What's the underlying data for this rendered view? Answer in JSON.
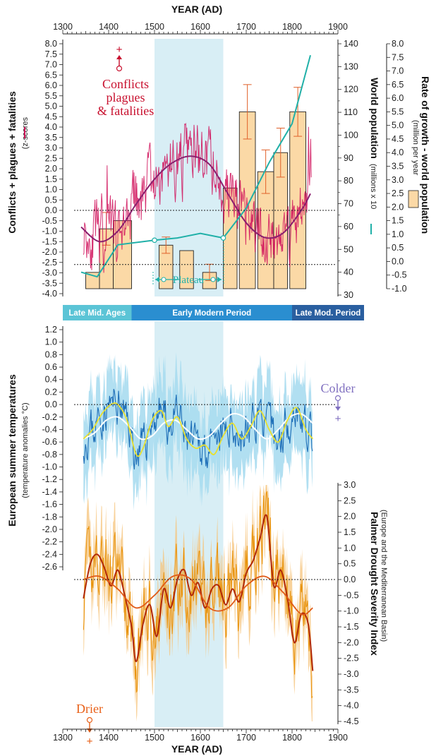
{
  "chart_data": {
    "type": "line",
    "x_axis": {
      "label": "YEAR (AD)",
      "range": [
        1300,
        1900
      ],
      "ticks": [
        "1300",
        "1400",
        "1500",
        "1600",
        "1700",
        "1800",
        "1900"
      ],
      "tick_values": [
        1300,
        1400,
        1500,
        1600,
        1700,
        1800,
        1900
      ]
    },
    "highlight_period": [
      1500,
      1650
    ],
    "top_panel": {
      "left_axis": {
        "label": "Conflicts + plagues + fatalities",
        "sublabel": "(z-scores",
        "range": [
          -4.0,
          8.0
        ],
        "ticks": [
          "-4.0",
          "-3.5",
          "-3.0",
          "-2.5",
          "-2.0",
          "-1.5",
          "-1.0",
          "-0.5",
          "0.0",
          "0.5",
          "1.0",
          "1.5",
          "2.0",
          "2.5",
          "3.0",
          "3.5",
          "4.0",
          "4.5",
          "5.0",
          "5.5",
          "6.0",
          "6.5",
          "7.0",
          "7.5",
          "8.0"
        ]
      },
      "mid_axis": {
        "label": "World population",
        "sublabel": "(millions x 10",
        "range": [
          30,
          140
        ],
        "ticks": [
          "30",
          "40",
          "50",
          "60",
          "70",
          "80",
          "90",
          "100",
          "110",
          "120",
          "130",
          "140"
        ]
      },
      "right_axis": {
        "label": "Rate of growth - world population",
        "sublabel": "(million per year",
        "range": [
          -1.0,
          8.0
        ],
        "ticks": [
          "-1.0",
          "-0.5",
          "0.0",
          "0.5",
          "1.0",
          "1.5",
          "2.0",
          "2.5",
          "3.0",
          "3.5",
          "4.0",
          "4.5",
          "5.0",
          "5.5",
          "6.0",
          "6.5",
          "7.0",
          "7.5",
          "8.0"
        ]
      },
      "annotation": [
        "Conflicts",
        "plagues",
        "& fatalities"
      ],
      "annotation_sign": "+",
      "plateau_label": "Plateau",
      "dotted_refs": [
        0.0,
        -2.6
      ],
      "growth_bars": [
        {
          "x0": 1350,
          "x1": 1380,
          "value": -0.4,
          "err": null
        },
        {
          "x0": 1380,
          "x1": 1410,
          "value": 1.2,
          "err": 0.6
        },
        {
          "x0": 1410,
          "x1": 1450,
          "value": 1.5,
          "err": null
        },
        {
          "x0": 1510,
          "x1": 1540,
          "value": 0.6,
          "err": 0.3
        },
        {
          "x0": 1555,
          "x1": 1585,
          "value": 0.4,
          "err": null
        },
        {
          "x0": 1605,
          "x1": 1635,
          "value": -0.4,
          "err": 0.3
        },
        {
          "x0": 1650,
          "x1": 1680,
          "value": 2.7,
          "err": null
        },
        {
          "x0": 1685,
          "x1": 1720,
          "value": 5.5,
          "err": 1.0
        },
        {
          "x0": 1725,
          "x1": 1760,
          "value": 3.3,
          "err": 0.8
        },
        {
          "x0": 1760,
          "x1": 1790,
          "value": 4.0,
          "err": 0.9
        },
        {
          "x0": 1795,
          "x1": 1830,
          "value": 5.5,
          "err": 0.9
        }
      ],
      "population": {
        "x": [
          1340,
          1375,
          1420,
          1500,
          1550,
          1600,
          1650,
          1700,
          1750,
          1800,
          1840
        ],
        "y": [
          40,
          38,
          52,
          54,
          55,
          57,
          55,
          68,
          88,
          105,
          135
        ]
      },
      "conflict_smooth": {
        "x": [
          1340,
          1380,
          1420,
          1460,
          1500,
          1540,
          1580,
          1620,
          1660,
          1700,
          1740,
          1780,
          1820,
          1840
        ],
        "y": [
          -0.8,
          -1.5,
          -1.0,
          0.3,
          1.5,
          2.3,
          2.6,
          2.2,
          0.8,
          -0.6,
          -1.3,
          -1.1,
          0.0,
          0.8
        ]
      }
    },
    "period_bar": [
      {
        "label": "Late Mid. Ages",
        "x0": 1300,
        "x1": 1450,
        "color": "#5bc4d6"
      },
      {
        "label": "Early Modern Period",
        "x0": 1450,
        "x1": 1800,
        "color": "#2a8ed0"
      },
      {
        "label": "Late Mod. Period",
        "x0": 1800,
        "x1": 1900,
        "color": "#2a5fa0"
      }
    ],
    "temperature_panel": {
      "axis": {
        "label": "European summer temperatures",
        "sublabel": "(temperature anomalies °C)",
        "range": [
          -2.6,
          1.2
        ],
        "ticks": [
          "1.2",
          "1.0",
          "0.8",
          "0.6",
          "0.4",
          "0.2",
          "0.0",
          "-0.2",
          "-0.4",
          "-0.6",
          "-0.8",
          "-1.0",
          "-1.2",
          "-1.4",
          "-1.6",
          "-1.8",
          "-2.0",
          "-2.2",
          "-2.4",
          "-2.6"
        ]
      },
      "annotation": "Colder",
      "annotation_sign": "+",
      "smooth_white": {
        "x": [
          1345,
          1370,
          1395,
          1420,
          1445,
          1470,
          1495,
          1520,
          1545,
          1570,
          1595,
          1620,
          1645,
          1670,
          1695,
          1720,
          1745,
          1770,
          1795,
          1820,
          1845
        ],
        "y": [
          -0.55,
          -0.45,
          -0.25,
          -0.2,
          -0.35,
          -0.55,
          -0.5,
          -0.3,
          -0.25,
          -0.4,
          -0.55,
          -0.5,
          -0.3,
          -0.15,
          -0.2,
          -0.4,
          -0.55,
          -0.4,
          -0.2,
          -0.15,
          -0.3
        ]
      },
      "smooth_yellow": {
        "x": [
          1345,
          1365,
          1385,
          1405,
          1420,
          1440,
          1460,
          1475,
          1495,
          1515,
          1530,
          1550,
          1570,
          1590,
          1610,
          1630,
          1650,
          1670,
          1690,
          1710,
          1730,
          1750,
          1770,
          1790,
          1810,
          1830,
          1845
        ],
        "y": [
          -0.55,
          -0.4,
          -0.15,
          0.0,
          0.0,
          -0.25,
          -0.8,
          -0.7,
          -0.25,
          -0.1,
          -0.35,
          -0.2,
          -0.55,
          -0.7,
          -0.65,
          -0.8,
          -0.5,
          -0.3,
          -0.55,
          -0.35,
          -0.1,
          -0.4,
          -0.6,
          -0.25,
          -0.05,
          -0.4,
          -0.55
        ]
      },
      "dotted_ref": 0.0
    },
    "drought_panel": {
      "axis": {
        "label": "Palmer Drought Severity Index",
        "sublabel": "(Europe and the Mediterranean Basin)",
        "range": [
          -4.5,
          3.0
        ],
        "ticks": [
          "-4.5",
          "-4.0",
          "-3.5",
          "-3.0",
          "-2.5",
          "-2.0",
          "-1.5",
          "-1.0",
          "-0.5",
          "0.0",
          "0.5",
          "1.0",
          "1.5",
          "2.0",
          "2.5",
          "3.0"
        ]
      },
      "annotation": "Drier",
      "annotation_sign": "+",
      "smooth_long": {
        "x": [
          1345,
          1380,
          1420,
          1460,
          1500,
          1540,
          1580,
          1620,
          1660,
          1700,
          1740,
          1780,
          1820,
          1845
        ],
        "y": [
          0.0,
          0.1,
          -0.3,
          -0.9,
          -0.5,
          0.1,
          0.0,
          -0.9,
          -0.9,
          -0.2,
          0.1,
          -0.4,
          -1.1,
          -0.9
        ]
      },
      "smooth_mid": {
        "x": [
          1345,
          1360,
          1375,
          1390,
          1405,
          1420,
          1435,
          1450,
          1460,
          1475,
          1490,
          1505,
          1520,
          1535,
          1550,
          1565,
          1580,
          1595,
          1610,
          1625,
          1640,
          1655,
          1670,
          1685,
          1700,
          1715,
          1730,
          1745,
          1760,
          1775,
          1790,
          1805,
          1820,
          1835,
          1845
        ],
        "y": [
          -0.6,
          0.5,
          0.8,
          0.4,
          -0.2,
          0.3,
          -0.5,
          -1.5,
          -2.6,
          -1.4,
          -0.8,
          -1.8,
          -0.3,
          -0.9,
          0.0,
          0.3,
          -0.5,
          -0.1,
          -0.9,
          -0.3,
          -0.2,
          -0.8,
          -0.3,
          -0.7,
          0.2,
          0.6,
          1.3,
          2.0,
          -0.2,
          0.3,
          -0.6,
          -2.0,
          -1.1,
          -1.4,
          -2.9
        ]
      },
      "dotted_ref": 0.0
    },
    "colors": {
      "conflict": "#d0105a",
      "conflict_smooth": "#8a1f6e",
      "population": "#20b0a8",
      "bars": "#fbd9a6",
      "temp_band": "#a8dcef",
      "temp_line": "#1e6fb8",
      "drought_band": "#f6c37a",
      "drought_line": "#e8930c",
      "drought_smooth": "#c83010",
      "highlight": "#d8eef5"
    }
  }
}
